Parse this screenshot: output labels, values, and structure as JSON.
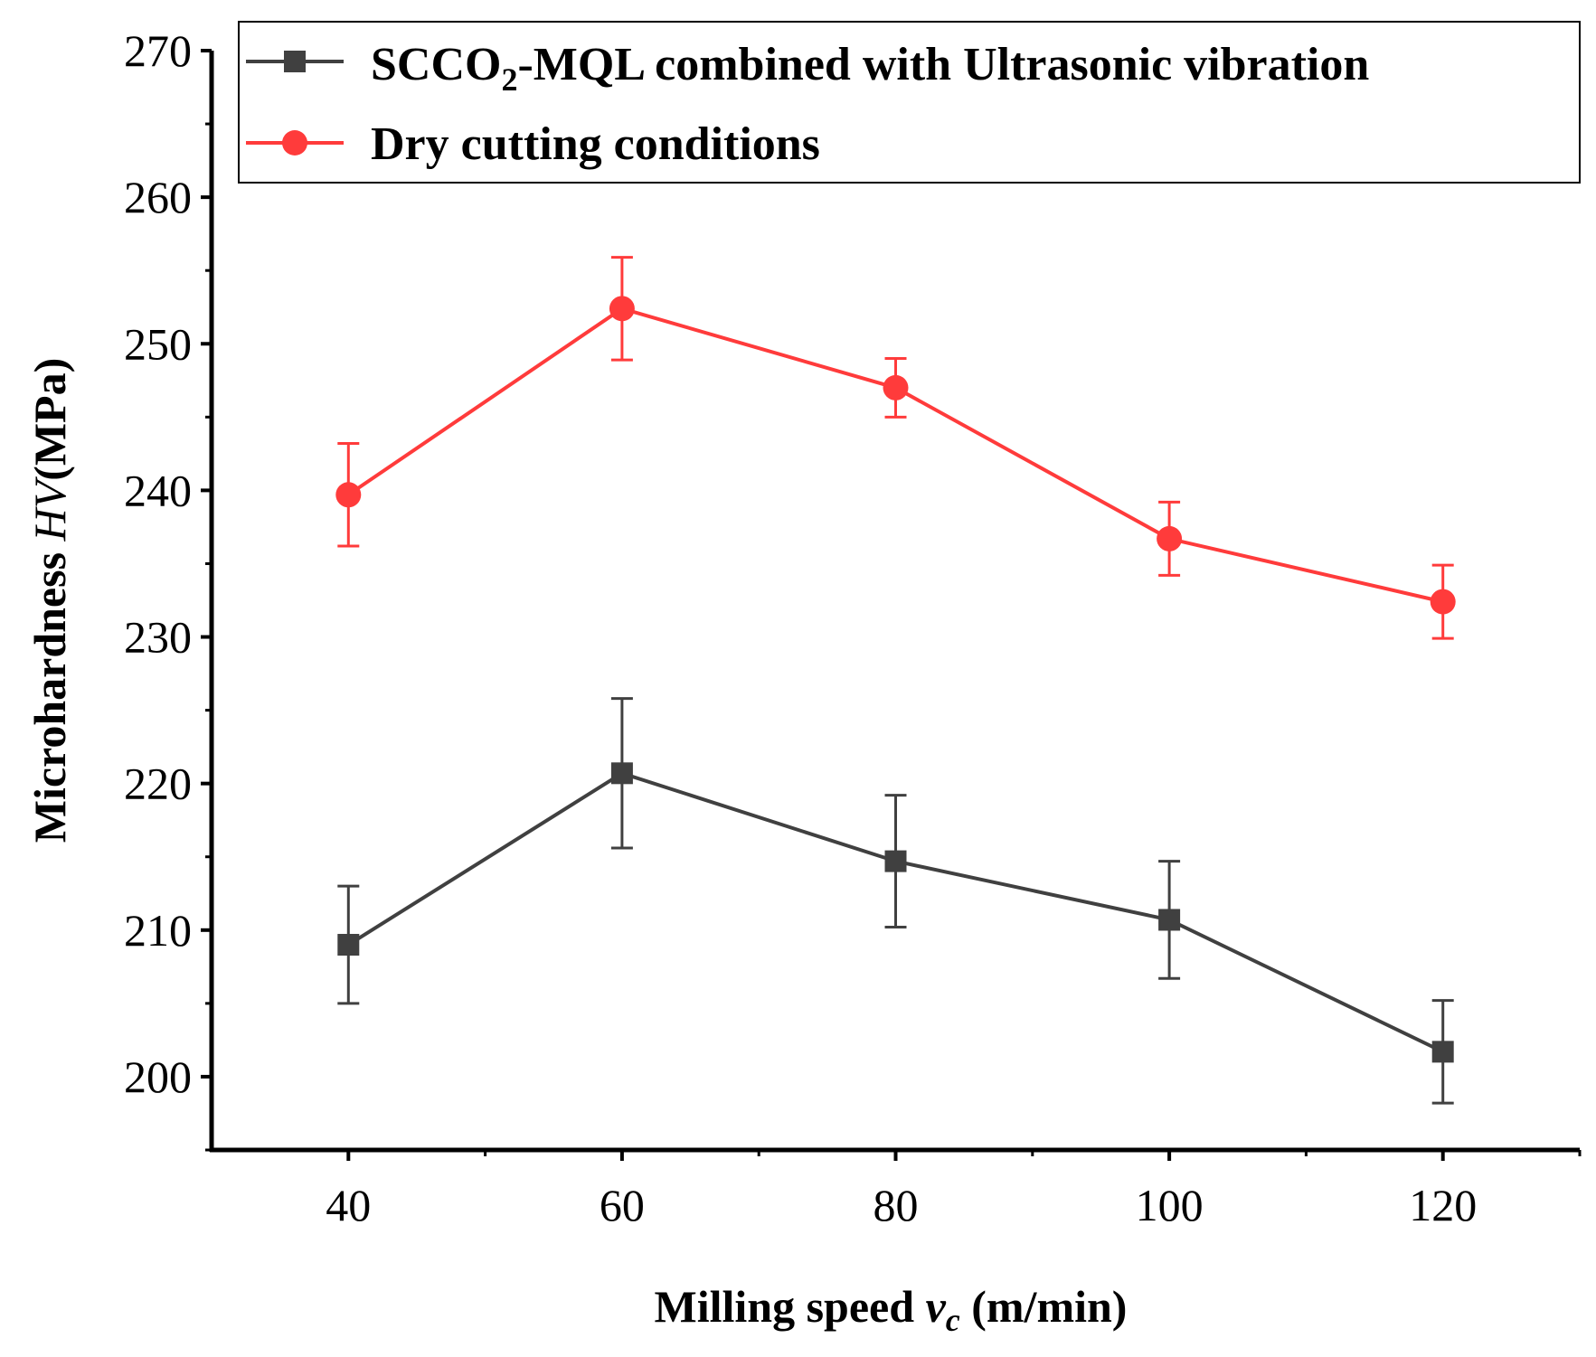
{
  "chart_data": {
    "type": "line",
    "xlabel": {
      "prefix": "Milling speed ",
      "var": "v",
      "sub": "c",
      "suffix": " (m/min)"
    },
    "ylabel": {
      "prefix": "Microhardness ",
      "var": "HV",
      "suffix": "(MPa)"
    },
    "xlim": [
      30,
      130
    ],
    "ylim": [
      195,
      270
    ],
    "x_ticks": [
      40,
      60,
      80,
      100,
      120
    ],
    "y_ticks": [
      200,
      210,
      220,
      230,
      240,
      250,
      260,
      270
    ],
    "x": [
      40,
      60,
      80,
      100,
      120
    ],
    "grid": false,
    "legend_position": "top-right",
    "series": [
      {
        "name": {
          "a": "SCCO",
          "sub": "2",
          "b": "-MQL combined with Ultrasonic vibration"
        },
        "color": "#404040",
        "marker": "square",
        "values": [
          209.0,
          220.7,
          214.7,
          210.7,
          201.7
        ],
        "errors": [
          4.0,
          5.1,
          4.5,
          4.0,
          3.5
        ]
      },
      {
        "name": {
          "a": "Dry cutting conditions"
        },
        "color": "#ff3b3b",
        "marker": "circle",
        "values": [
          239.7,
          252.4,
          247.0,
          236.7,
          232.4
        ],
        "errors": [
          3.5,
          3.5,
          2.0,
          2.5,
          2.5
        ]
      }
    ]
  }
}
